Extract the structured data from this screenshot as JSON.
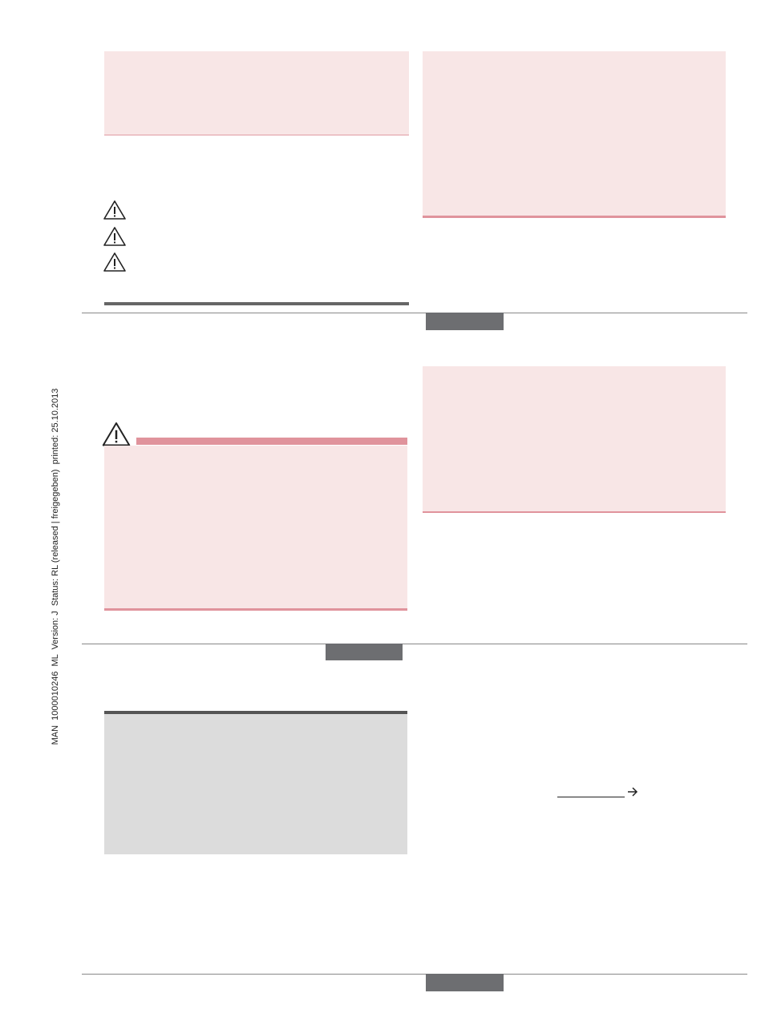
{
  "side_note": "MAN  1000010246  ML  Version: J  Status: RL (released | freigegeben)  printed: 25.10.2013"
}
